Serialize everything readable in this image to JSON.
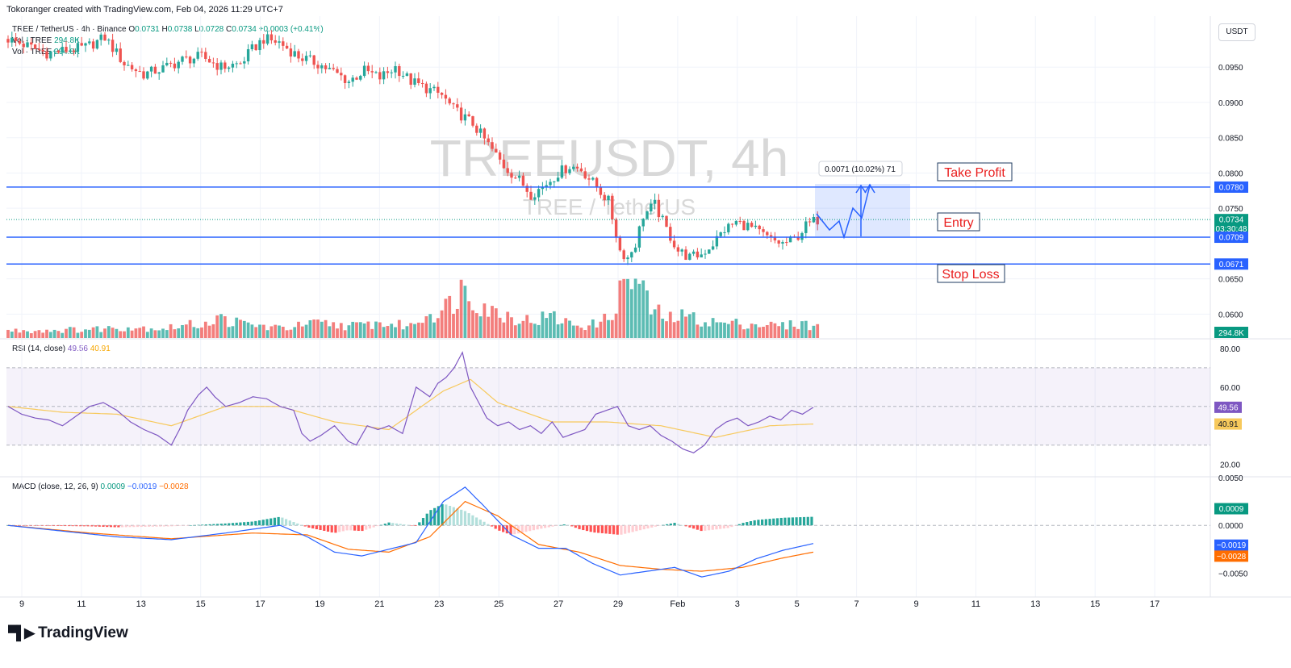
{
  "header": {
    "text": "Tokoranger created with TradingView.com, Feb 04, 2026 11:29 UTC+7"
  },
  "legend": {
    "title": "TREE / TetherUS · 4h · Binance",
    "o_label": "O",
    "o_value": "0.0731",
    "h_label": "H",
    "h_value": "0.0738",
    "l_label": "L",
    "l_value": "0.0728",
    "c_label": "C",
    "c_value": "0.0734",
    "change": "+0.0003 (+0.41%)",
    "vol1_label": "Vol · TREE",
    "vol1_value": "294.8K",
    "vol2_label": "Vol · TREE",
    "vol2_value": "294.8K"
  },
  "currency_button": "USDT",
  "watermark": {
    "line1": "TREEUSDT, 4h",
    "line2": "TREE / TetherUS"
  },
  "annotations": {
    "take_profit": "Take Profit",
    "entry": "Entry",
    "stop_loss": "Stop Loss",
    "measure": "0.0071 (10.02%) 71"
  },
  "price_tags": {
    "take_profit": "0.0780",
    "current": "0.0734",
    "countdown": "03:30:48",
    "entry": "0.0709",
    "stop_loss": "0.0671",
    "volume": "294.8K"
  },
  "rsi": {
    "label": "RSI (14, close)",
    "value": "49.56",
    "ma_value": "40.91"
  },
  "macd": {
    "label": "MACD (close, 12, 26, 9)",
    "hist_value": "0.0009",
    "macd_value": "−0.0019",
    "signal_value": "−0.0028"
  },
  "colors": {
    "up": "#26a69a",
    "down": "#ef5350",
    "line": "#2962ff",
    "rsi": "#7e57c2",
    "rsi_ma": "#f7c95c",
    "signal": "#ff6d00",
    "tp_label": "#e91e1e"
  },
  "chart_data": {
    "type": "candlestick",
    "interval": "4h",
    "symbol": "TREEUSDT",
    "x_tick_labels": [
      "9",
      "11",
      "13",
      "15",
      "17",
      "19",
      "21",
      "23",
      "25",
      "27",
      "29",
      "Feb",
      "3",
      "5",
      "7",
      "9",
      "11",
      "13",
      "15",
      "17"
    ],
    "price_axis": {
      "ticks": [
        "0.0950",
        "0.0900",
        "0.0850",
        "0.0800",
        "0.0750",
        "0.0650",
        "0.0600"
      ],
      "range": [
        0.0565,
        0.102
      ]
    },
    "levels": {
      "take_profit": 0.078,
      "entry": 0.0709,
      "stop_loss": 0.0671
    },
    "rsi_axis": {
      "ticks": [
        "80.00",
        "60.00",
        "20.00"
      ],
      "overbought": 70,
      "oversold": 30,
      "range": [
        14,
        85
      ]
    },
    "macd_axis": {
      "ticks": [
        "0.0050",
        "0.0000",
        "−0.0050"
      ],
      "range": [
        -0.0075,
        0.005
      ]
    },
    "rsi_now": 49.56,
    "rsi_ma_now": 40.91,
    "macd_now": -0.0019,
    "signal_now": -0.0028,
    "hist_now": 0.0009,
    "close_path": [
      [
        0,
        0.099
      ],
      [
        10,
        0.097
      ],
      [
        20,
        0.0978
      ],
      [
        25,
        0.0992
      ],
      [
        30,
        0.0955
      ],
      [
        35,
        0.094
      ],
      [
        40,
        0.0948
      ],
      [
        45,
        0.096
      ],
      [
        50,
        0.0965
      ],
      [
        55,
        0.095
      ],
      [
        60,
        0.0955
      ],
      [
        63,
        0.0975
      ],
      [
        66,
        0.099
      ],
      [
        70,
        0.0985
      ],
      [
        75,
        0.0965
      ],
      [
        80,
        0.0955
      ],
      [
        85,
        0.094
      ],
      [
        88,
        0.093
      ],
      [
        92,
        0.0945
      ],
      [
        96,
        0.0935
      ],
      [
        100,
        0.095
      ],
      [
        104,
        0.093
      ],
      [
        108,
        0.092
      ],
      [
        112,
        0.091
      ],
      [
        115,
        0.089
      ],
      [
        120,
        0.087
      ],
      [
        124,
        0.084
      ],
      [
        128,
        0.081
      ],
      [
        132,
        0.079
      ],
      [
        135,
        0.077
      ],
      [
        138,
        0.078
      ],
      [
        142,
        0.08
      ],
      [
        145,
        0.081
      ],
      [
        148,
        0.0805
      ],
      [
        152,
        0.078
      ],
      [
        155,
        0.076
      ],
      [
        158,
        0.069
      ],
      [
        160,
        0.068
      ],
      [
        162,
        0.07
      ],
      [
        164,
        0.074
      ],
      [
        167,
        0.0755
      ],
      [
        170,
        0.072
      ],
      [
        173,
        0.069
      ],
      [
        176,
        0.068
      ],
      [
        179,
        0.0685
      ],
      [
        182,
        0.07
      ],
      [
        185,
        0.072
      ],
      [
        188,
        0.073
      ],
      [
        191,
        0.0725
      ],
      [
        194,
        0.0715
      ],
      [
        197,
        0.0705
      ],
      [
        200,
        0.07
      ],
      [
        203,
        0.0705
      ],
      [
        206,
        0.0725
      ],
      [
        209,
        0.0734
      ]
    ],
    "volume_path": [
      [
        0,
        30
      ],
      [
        20,
        35
      ],
      [
        30,
        45
      ],
      [
        40,
        40
      ],
      [
        50,
        60
      ],
      [
        55,
        80
      ],
      [
        60,
        60
      ],
      [
        70,
        40
      ],
      [
        75,
        50
      ],
      [
        80,
        60
      ],
      [
        90,
        50
      ],
      [
        95,
        60
      ],
      [
        100,
        55
      ],
      [
        104,
        50
      ],
      [
        108,
        100
      ],
      [
        112,
        110
      ],
      [
        115,
        160
      ],
      [
        118,
        220
      ],
      [
        120,
        170
      ],
      [
        125,
        110
      ],
      [
        130,
        90
      ],
      [
        135,
        70
      ],
      [
        140,
        90
      ],
      [
        145,
        60
      ],
      [
        150,
        50
      ],
      [
        155,
        80
      ],
      [
        158,
        180
      ],
      [
        160,
        250
      ],
      [
        163,
        220
      ],
      [
        166,
        120
      ],
      [
        170,
        80
      ],
      [
        175,
        90
      ],
      [
        180,
        70
      ],
      [
        185,
        60
      ],
      [
        190,
        60
      ],
      [
        195,
        55
      ],
      [
        200,
        50
      ],
      [
        205,
        60
      ],
      [
        209,
        45
      ]
    ],
    "rsi_path": [
      [
        0,
        50
      ],
      [
        5,
        46
      ],
      [
        10,
        44
      ],
      [
        15,
        43
      ],
      [
        20,
        40
      ],
      [
        25,
        45
      ],
      [
        30,
        50
      ],
      [
        35,
        52
      ],
      [
        40,
        48
      ],
      [
        45,
        42
      ],
      [
        50,
        38
      ],
      [
        55,
        35
      ],
      [
        60,
        30
      ],
      [
        63,
        38
      ],
      [
        66,
        48
      ],
      [
        70,
        56
      ],
      [
        73,
        60
      ],
      [
        76,
        55
      ],
      [
        80,
        50
      ],
      [
        85,
        52
      ],
      [
        90,
        55
      ],
      [
        95,
        54
      ],
      [
        100,
        50
      ],
      [
        105,
        48
      ],
      [
        108,
        36
      ],
      [
        111,
        32
      ],
      [
        115,
        35
      ],
      [
        120,
        40
      ],
      [
        125,
        32
      ],
      [
        128,
        30
      ],
      [
        132,
        40
      ],
      [
        136,
        38
      ],
      [
        140,
        40
      ],
      [
        145,
        36
      ],
      [
        150,
        60
      ],
      [
        155,
        55
      ],
      [
        158,
        62
      ],
      [
        161,
        65
      ],
      [
        164,
        70
      ],
      [
        167,
        78
      ],
      [
        170,
        60
      ],
      [
        173,
        52
      ],
      [
        176,
        44
      ],
      [
        180,
        40
      ],
      [
        184,
        42
      ],
      [
        188,
        38
      ],
      [
        192,
        40
      ],
      [
        196,
        36
      ],
      [
        200,
        42
      ],
      [
        204,
        34
      ],
      [
        208,
        36
      ],
      [
        212,
        38
      ],
      [
        216,
        46
      ],
      [
        220,
        48
      ],
      [
        224,
        50
      ],
      [
        228,
        40
      ],
      [
        232,
        38
      ],
      [
        236,
        40
      ],
      [
        240,
        35
      ],
      [
        244,
        32
      ],
      [
        248,
        28
      ],
      [
        252,
        26
      ],
      [
        256,
        30
      ],
      [
        260,
        38
      ],
      [
        264,
        42
      ],
      [
        268,
        44
      ],
      [
        272,
        40
      ],
      [
        276,
        42
      ],
      [
        280,
        45
      ],
      [
        284,
        43
      ],
      [
        288,
        48
      ],
      [
        292,
        46
      ],
      [
        296,
        49.56
      ]
    ],
    "rsi_ma_path": [
      [
        0,
        50
      ],
      [
        20,
        47
      ],
      [
        40,
        46
      ],
      [
        60,
        40
      ],
      [
        80,
        50
      ],
      [
        100,
        50
      ],
      [
        120,
        42
      ],
      [
        140,
        38
      ],
      [
        160,
        58
      ],
      [
        170,
        64
      ],
      [
        180,
        52
      ],
      [
        200,
        42
      ],
      [
        220,
        42
      ],
      [
        240,
        40
      ],
      [
        260,
        34
      ],
      [
        280,
        40
      ],
      [
        296,
        40.91
      ]
    ],
    "macd_path": [
      [
        0,
        0.0
      ],
      [
        20,
        -0.0006
      ],
      [
        40,
        -0.0012
      ],
      [
        60,
        -0.0015
      ],
      [
        80,
        -0.0008
      ],
      [
        100,
        0.0
      ],
      [
        110,
        -0.0012
      ],
      [
        120,
        -0.0028
      ],
      [
        130,
        -0.0032
      ],
      [
        140,
        -0.0025
      ],
      [
        150,
        -0.0018
      ],
      [
        160,
        0.0025
      ],
      [
        168,
        0.004
      ],
      [
        175,
        0.002
      ],
      [
        185,
        -0.001
      ],
      [
        195,
        -0.0024
      ],
      [
        205,
        -0.0024
      ],
      [
        215,
        -0.004
      ],
      [
        225,
        -0.0052
      ],
      [
        235,
        -0.0048
      ],
      [
        245,
        -0.0044
      ],
      [
        255,
        -0.0054
      ],
      [
        265,
        -0.0048
      ],
      [
        275,
        -0.0035
      ],
      [
        285,
        -0.0026
      ],
      [
        296,
        -0.0019
      ]
    ],
    "signal_path": [
      [
        0,
        0.0
      ],
      [
        30,
        -0.0008
      ],
      [
        60,
        -0.0014
      ],
      [
        90,
        -0.0008
      ],
      [
        110,
        -0.001
      ],
      [
        125,
        -0.0025
      ],
      [
        140,
        -0.0028
      ],
      [
        155,
        -0.0012
      ],
      [
        168,
        0.0025
      ],
      [
        180,
        0.001
      ],
      [
        195,
        -0.002
      ],
      [
        210,
        -0.0028
      ],
      [
        225,
        -0.0042
      ],
      [
        240,
        -0.0046
      ],
      [
        255,
        -0.0048
      ],
      [
        270,
        -0.0044
      ],
      [
        285,
        -0.0034
      ],
      [
        296,
        -0.0028
      ]
    ]
  }
}
